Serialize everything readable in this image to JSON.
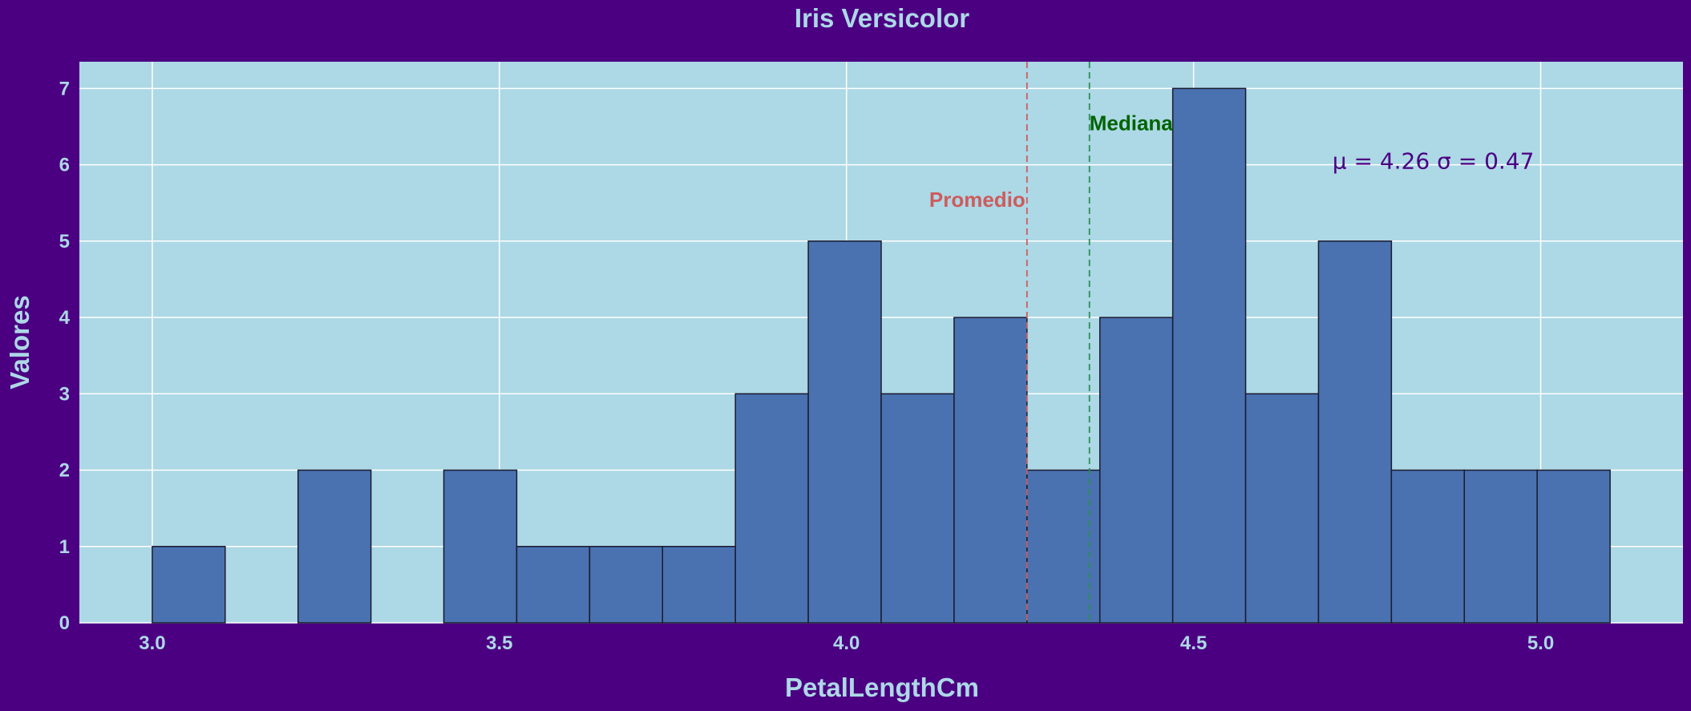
{
  "chart_data": {
    "type": "bar",
    "title": "Iris Versicolor",
    "xlabel": "PetalLengthCm",
    "ylabel": "Valores",
    "xlim": [
      2.895,
      5.205
    ],
    "ylim": [
      0,
      7.35
    ],
    "x_ticks": [
      "3.0",
      "3.5",
      "4.0",
      "4.5",
      "5.0"
    ],
    "y_ticks": [
      "0",
      "1",
      "2",
      "3",
      "4",
      "5",
      "6",
      "7"
    ],
    "grid": true,
    "bin_start": 3.0,
    "bin_width": 0.105,
    "counts": [
      1,
      0,
      2,
      0,
      2,
      1,
      1,
      1,
      3,
      5,
      3,
      4,
      2,
      4,
      7,
      3,
      5,
      2,
      2,
      2
    ],
    "mean": 4.26,
    "median": 4.35,
    "mean_label": "Promedio",
    "median_label": "Mediana",
    "stats_text": "μ = 4.26   σ = 0.47"
  },
  "colors": {
    "background": "#4b0082",
    "plot_background": "#add8e6",
    "bar_fill": "#4a72b0",
    "bar_edge": "#1a1a2e",
    "text": "#add8e6",
    "mean_line": "#cd5c5c",
    "median_line": "#2e8b57",
    "median_text": "#006400",
    "stats_text": "#4b0082",
    "grid": "#ffffff"
  }
}
